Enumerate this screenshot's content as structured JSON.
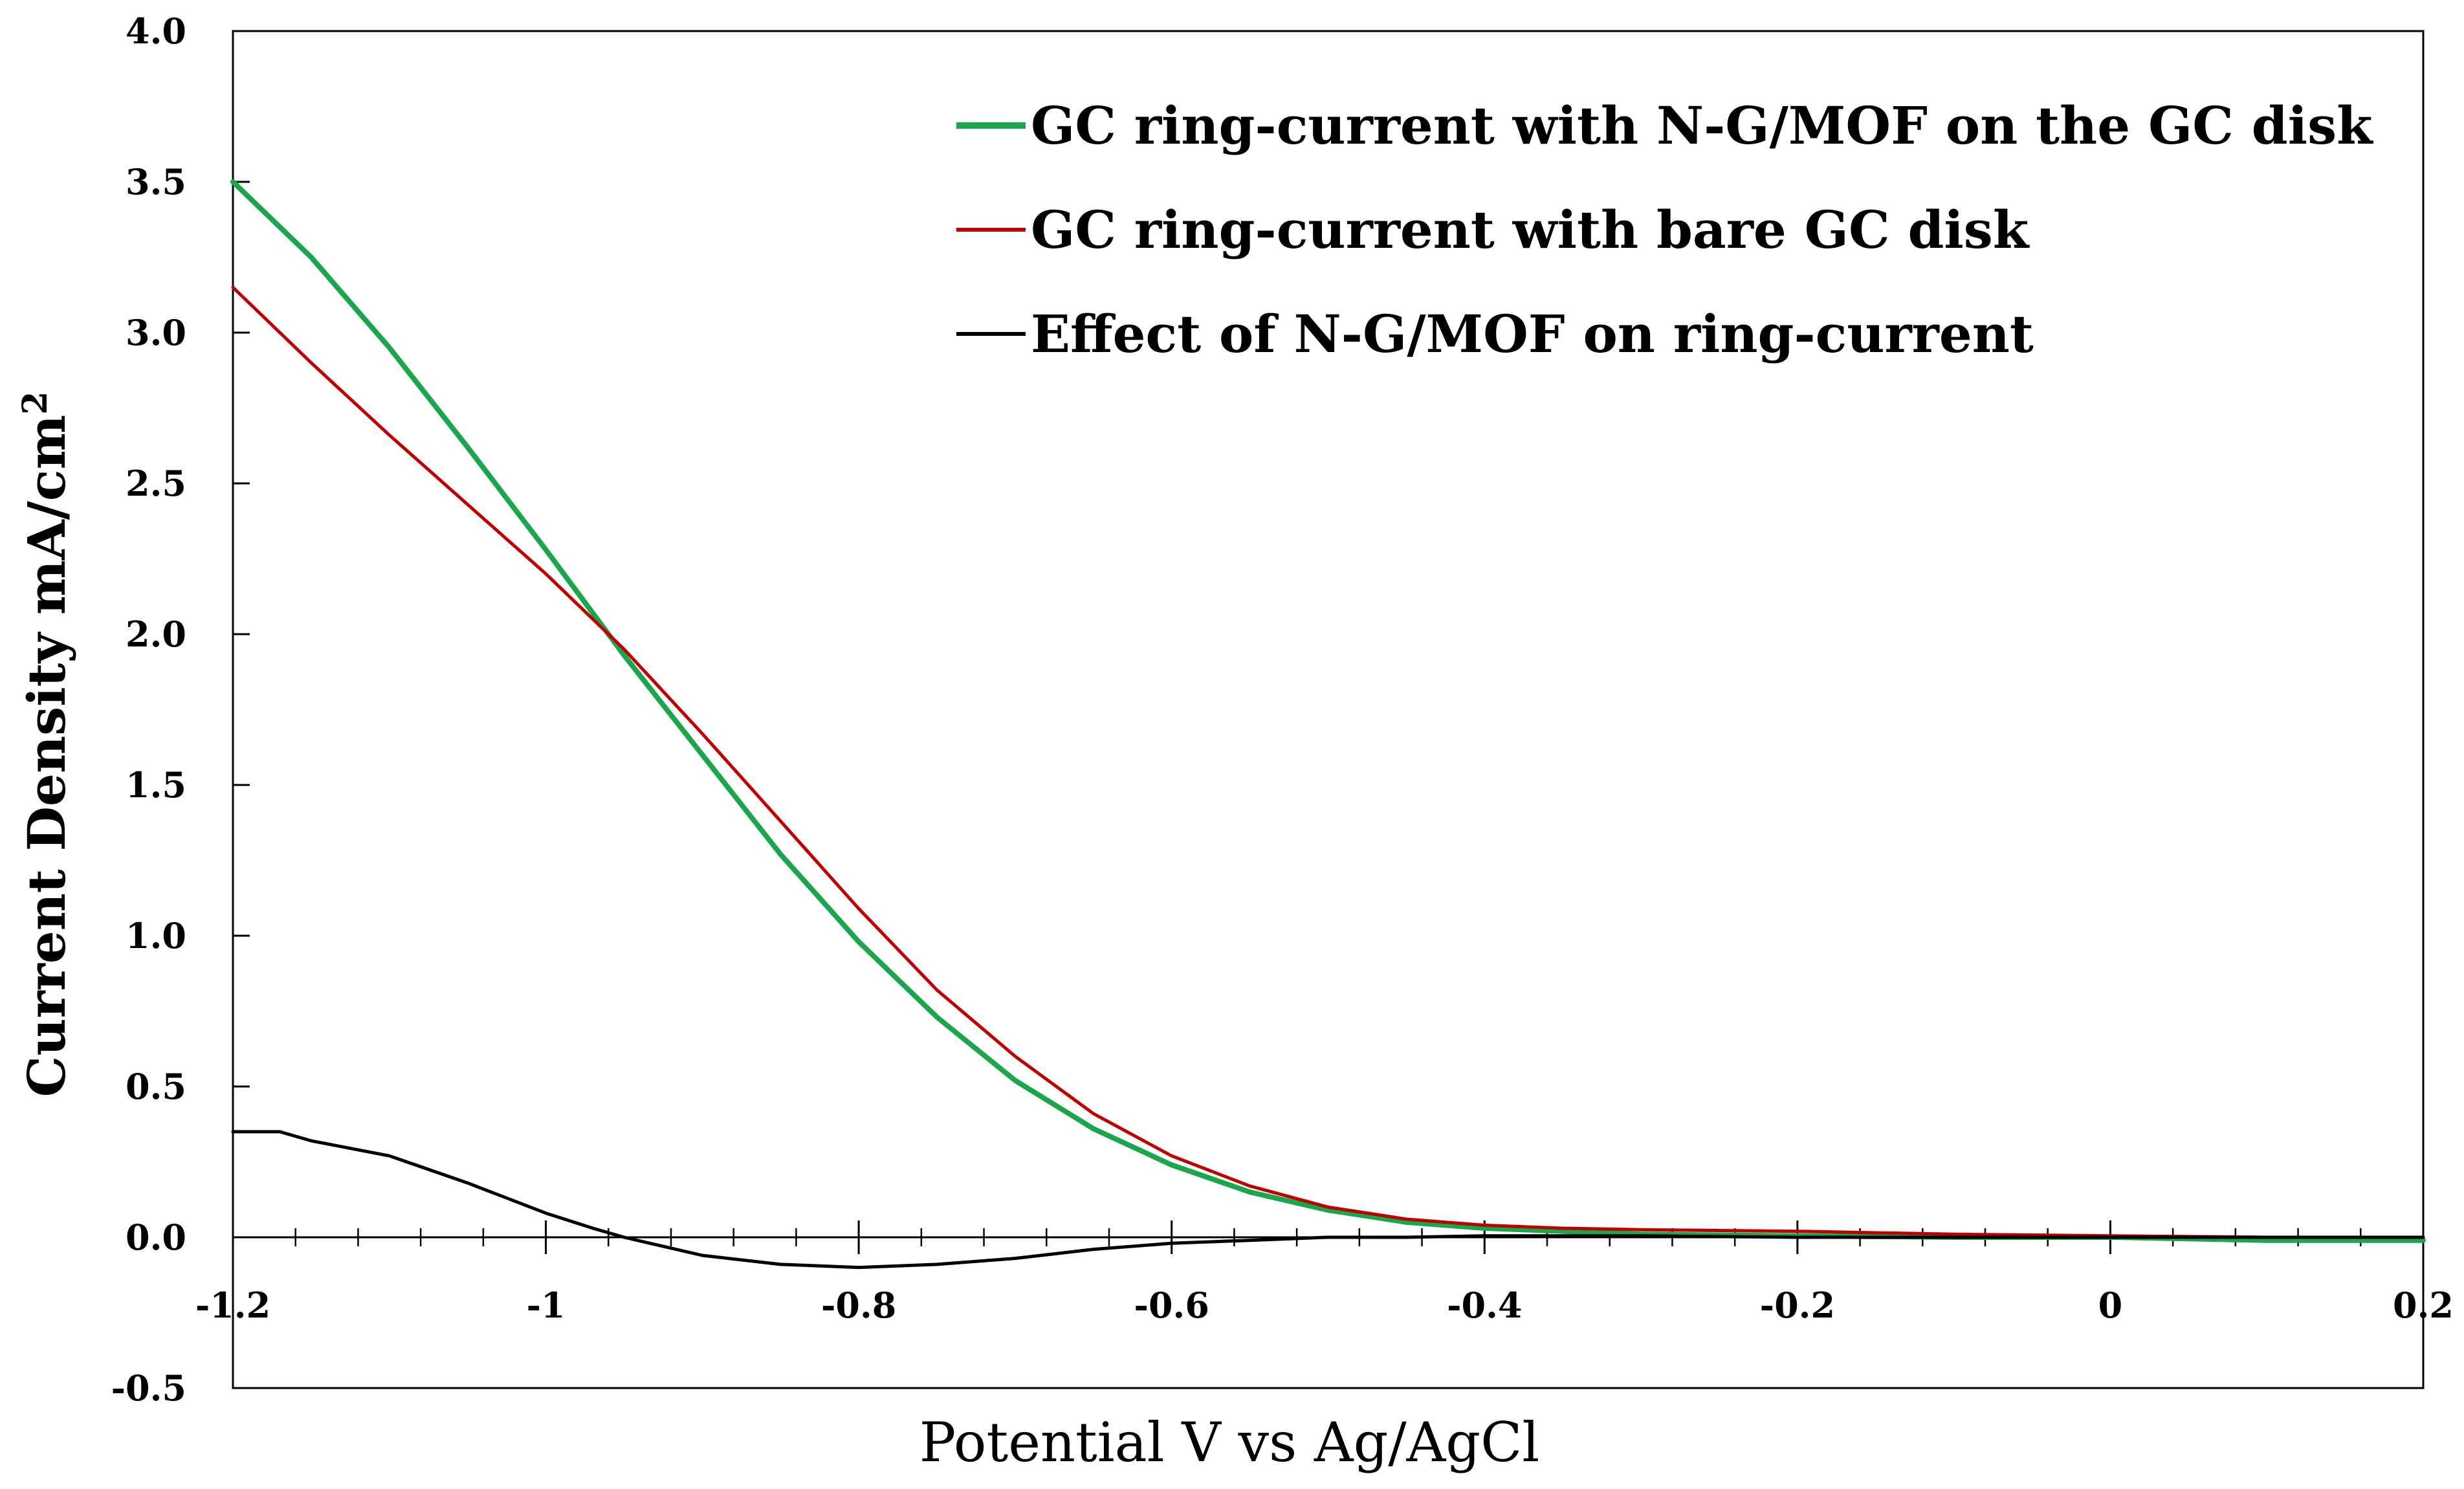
{
  "chart_data": {
    "type": "line",
    "title": "",
    "xlabel": "Potential V vs Ag/AgCl",
    "ylabel": "Current Density mA/cm",
    "ylabel_superscript": "2",
    "xlim": [
      -1.2,
      0.2
    ],
    "ylim": [
      -0.5,
      4.0
    ],
    "x_ticks": [
      -1.2,
      -1.0,
      -0.8,
      -0.6,
      -0.4,
      -0.2,
      0.0,
      0.2
    ],
    "x_tick_labels": [
      "-1.2",
      "-1",
      "-0.8",
      "-0.6",
      "-0.4",
      "-0.2",
      "0",
      "0.2"
    ],
    "x_minor_step": 0.04,
    "y_ticks": [
      -0.5,
      0.0,
      0.5,
      1.0,
      1.5,
      2.0,
      2.5,
      3.0,
      3.5,
      4.0
    ],
    "y_tick_labels": [
      "-0.5",
      "0.0",
      "0.5",
      "1.0",
      "1.5",
      "2.0",
      "2.5",
      "3.0",
      "3.5",
      "4.0"
    ],
    "grid": false,
    "legend_position": "top-right",
    "series": [
      {
        "name": "GC ring-current with N-G/MOF on the GC disk",
        "color": "#1aa64a",
        "x": [
          -1.2,
          -1.15,
          -1.1,
          -1.05,
          -1.0,
          -0.95,
          -0.9,
          -0.85,
          -0.8,
          -0.75,
          -0.7,
          -0.65,
          -0.6,
          -0.55,
          -0.5,
          -0.45,
          -0.4,
          -0.35,
          -0.3,
          -0.2,
          -0.1,
          0.0,
          0.1,
          0.2
        ],
        "y": [
          3.5,
          3.25,
          2.95,
          2.62,
          2.28,
          1.93,
          1.6,
          1.27,
          0.98,
          0.73,
          0.52,
          0.36,
          0.24,
          0.15,
          0.09,
          0.05,
          0.03,
          0.02,
          0.01,
          0.005,
          0.0,
          0.0,
          -0.01,
          -0.01
        ]
      },
      {
        "name": "GC ring-current with bare GC disk",
        "color": "#c00000",
        "x": [
          -1.2,
          -1.15,
          -1.1,
          -1.05,
          -1.0,
          -0.95,
          -0.9,
          -0.85,
          -0.8,
          -0.75,
          -0.7,
          -0.65,
          -0.6,
          -0.55,
          -0.5,
          -0.45,
          -0.4,
          -0.35,
          -0.3,
          -0.2,
          -0.1,
          0.0,
          0.1,
          0.2
        ],
        "y": [
          3.15,
          2.9,
          2.66,
          2.43,
          2.2,
          1.95,
          1.67,
          1.38,
          1.09,
          0.82,
          0.6,
          0.41,
          0.27,
          0.17,
          0.1,
          0.06,
          0.04,
          0.03,
          0.025,
          0.02,
          0.01,
          0.005,
          0.0,
          0.0
        ]
      },
      {
        "name": "Effect of N-G/MOF on ring-current",
        "color": "#000000",
        "x": [
          -1.2,
          -1.17,
          -1.15,
          -1.1,
          -1.05,
          -1.0,
          -0.97,
          -0.95,
          -0.9,
          -0.85,
          -0.8,
          -0.75,
          -0.7,
          -0.65,
          -0.6,
          -0.55,
          -0.5,
          -0.45,
          -0.4,
          -0.3,
          -0.2,
          -0.1,
          0.0,
          0.1,
          0.2
        ],
        "y": [
          0.35,
          0.35,
          0.32,
          0.27,
          0.18,
          0.08,
          0.03,
          0.0,
          -0.06,
          -0.09,
          -0.1,
          -0.09,
          -0.07,
          -0.04,
          -0.02,
          -0.01,
          0.0,
          0.0,
          0.005,
          0.005,
          0.0,
          0.0,
          0.0,
          0.0,
          0.0
        ]
      }
    ]
  }
}
